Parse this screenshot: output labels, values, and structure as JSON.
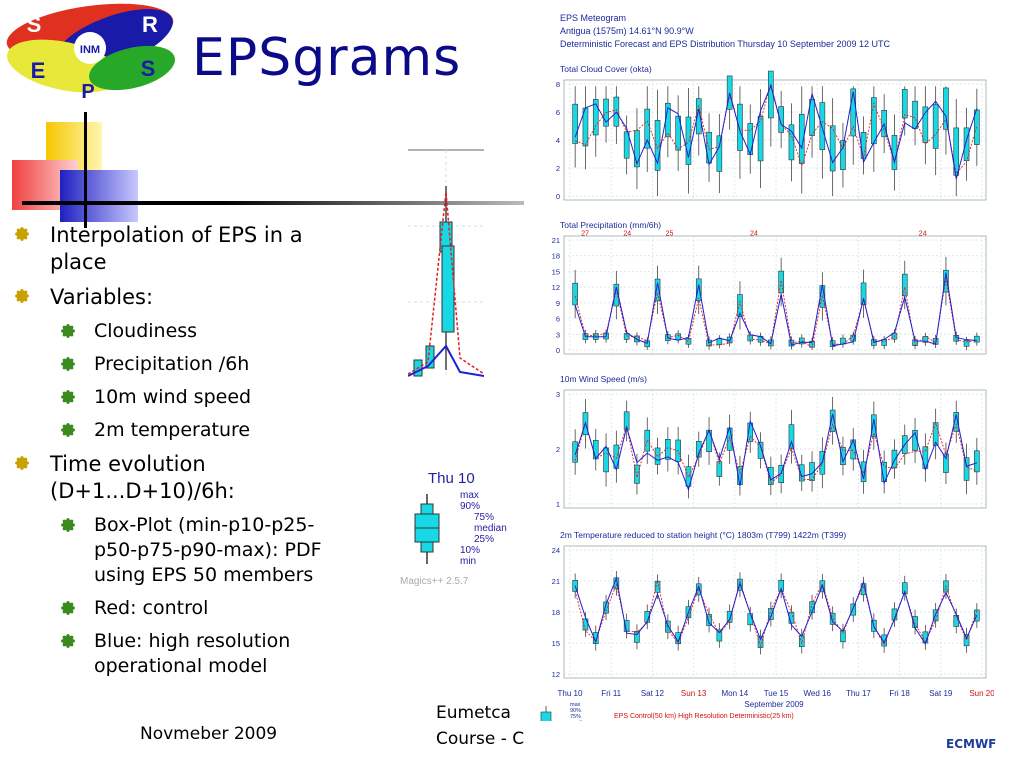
{
  "logo": {
    "letters": [
      "S",
      "R",
      "E",
      "S",
      "P"
    ],
    "center_text": "INM"
  },
  "title": "EPSgrams",
  "bullets": [
    {
      "level": 1,
      "text": "Interpolation of EPS in a place"
    },
    {
      "level": 1,
      "text": "Variables:"
    },
    {
      "level": 2,
      "text": "Cloudiness"
    },
    {
      "level": 2,
      "text": "Precipitation /6h"
    },
    {
      "level": 2,
      "text": "10m wind speed"
    },
    {
      "level": 2,
      "text": "2m temperature"
    },
    {
      "level": 1,
      "text": "Time evolution (D+1...D+10)/6h:"
    },
    {
      "level": 2,
      "text": "Box-Plot (min-p10-p25-p50-p75-p90-max): PDF using EPS 50 members"
    },
    {
      "level": 2,
      "text": "Red: control"
    },
    {
      "level": 2,
      "text": "Blue: high resolution operational model"
    }
  ],
  "footer": {
    "date": "Novmeber 2009",
    "course_line1": "Eumetca",
    "course_line2": "Course - C"
  },
  "brand": "ECMWF",
  "legend_box": {
    "header": "Thu 10",
    "labels": [
      "max",
      "90%",
      "75%",
      "median",
      "25%",
      "10%",
      "min"
    ],
    "credit": "Magics++ 2.5.7"
  },
  "meteogram": {
    "title_lines": [
      "EPS Meteogram",
      "Antigua (1575m) 14.61°N 90.9°W",
      "Deterministic Forecast and EPS Distribution Thursday 10 September 2009 12 UTC"
    ],
    "panels": [
      {
        "title": "Total Cloud Cover (okta)",
        "yticks": [
          "8",
          "6",
          "4",
          "2",
          "0"
        ]
      },
      {
        "title": "Total Precipitation (mm/6h)",
        "yticks": [
          "21",
          "18",
          "15",
          "12",
          "9",
          "6",
          "3",
          "0"
        ],
        "top_labels": [
          "27",
          "24",
          "25",
          "24",
          "24"
        ]
      },
      {
        "title": "10m Wind Speed (m/s)",
        "yticks": [
          "3",
          "2",
          "1"
        ]
      },
      {
        "title": "2m Temperature reduced to station height (°C) 1803m (T799) 1422m (T399)",
        "yticks": [
          "24",
          "21",
          "18",
          "15",
          "12"
        ]
      }
    ],
    "xlabels": [
      "Thu 10",
      "Fri 11",
      "Sat 12",
      "Sun 13",
      "Mon 14",
      "Tue 15",
      "Wed 16",
      "Thu 17",
      "Fri 18",
      "Sat 19",
      "Sun 20"
    ],
    "month_label": "September 2009",
    "bottom_note": "EPS Control(50 km) High Resolution Deterministic(25 km)",
    "mini_legend": [
      "max",
      "90%",
      "75%",
      "median",
      "25%",
      "10%",
      "min"
    ],
    "weekend_labels_color": "#d01010",
    "box_color": "#17d9e6",
    "control_color": "#e02020",
    "hires_color": "#2020d0"
  },
  "colors": {
    "title": "#0b0b8a",
    "bullet_l1": "#c8a000",
    "bullet_l2": "#3a8a20"
  }
}
